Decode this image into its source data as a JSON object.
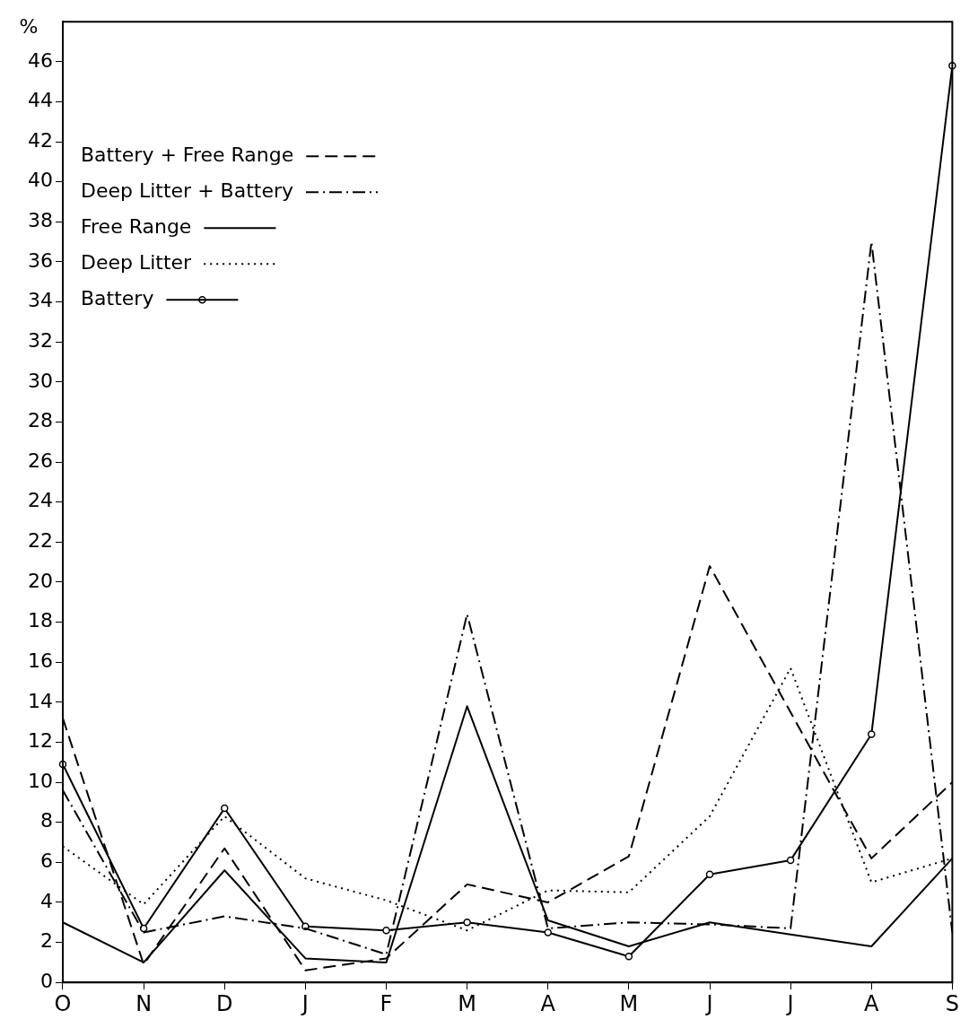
{
  "chart_data": {
    "type": "line",
    "ylabel": "%",
    "categories": [
      "O",
      "N",
      "D",
      "J",
      "F",
      "M",
      "A",
      "M",
      "J",
      "J",
      "A",
      "S"
    ],
    "ylim": [
      0,
      48
    ],
    "yticks": [
      0,
      2,
      4,
      6,
      8,
      10,
      12,
      14,
      16,
      18,
      20,
      22,
      24,
      26,
      28,
      30,
      32,
      34,
      36,
      38,
      40,
      42,
      44,
      46
    ],
    "grid": false,
    "legend": "top left",
    "series": [
      {
        "name": "Battery + Free Range",
        "color": "#000000",
        "line_style": "dashed",
        "marker": "none",
        "values": [
          13.2,
          0.9,
          6.7,
          0.6,
          1.2,
          4.9,
          4.0,
          6.3,
          20.8,
          13.5,
          6.2,
          10.0
        ]
      },
      {
        "name": "Deep Litter + Battery",
        "color": "#000000",
        "line_style": "dashdot",
        "marker": "none",
        "values": [
          9.6,
          2.5,
          3.3,
          2.7,
          1.4,
          18.4,
          2.7,
          3.0,
          2.9,
          2.7,
          37.0,
          2.5
        ]
      },
      {
        "name": "Free Range",
        "color": "#000000",
        "line_style": "solid",
        "marker": "none",
        "values": [
          3.0,
          1.0,
          5.6,
          1.2,
          1.0,
          13.8,
          3.1,
          1.8,
          3.0,
          2.4,
          1.8,
          6.2
        ]
      },
      {
        "name": "Deep Litter",
        "color": "#000000",
        "line_style": "dotted",
        "marker": "none",
        "values": [
          6.8,
          3.9,
          8.3,
          5.2,
          4.1,
          2.6,
          4.6,
          4.5,
          8.3,
          15.7,
          5.0,
          6.2
        ]
      },
      {
        "name": "Battery",
        "color": "#000000",
        "line_style": "solid",
        "marker": "circle",
        "values": [
          10.9,
          2.7,
          8.7,
          2.8,
          2.6,
          3.0,
          2.5,
          1.3,
          5.4,
          6.1,
          12.4,
          45.8
        ]
      }
    ]
  }
}
